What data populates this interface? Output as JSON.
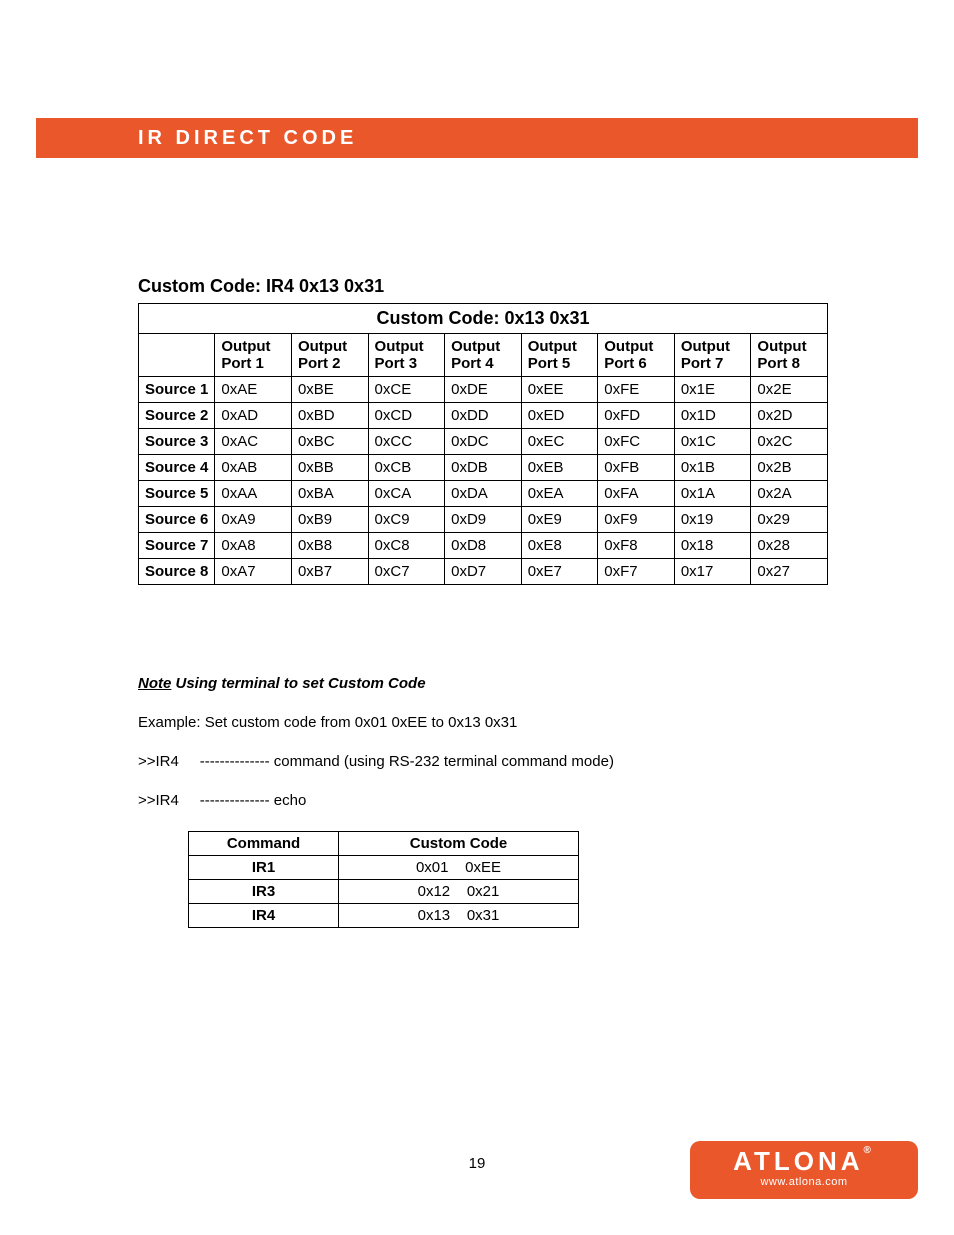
{
  "header": {
    "title": "IR DIRECT CODE",
    "bar_color": "#e9572b",
    "text_color": "#ffffff"
  },
  "section_title": "Custom Code: IR4 0x13 0x31",
  "main_table": {
    "caption": "Custom Code: 0x13   0x31",
    "columns": [
      "",
      "Output Port 1",
      "Output Port 2",
      "Output Port 3",
      "Output Port 4",
      "Output Port 5",
      "Output Port 6",
      "Output Port 7",
      "Output Port 8"
    ],
    "rows": [
      [
        "Source 1",
        "0xAE",
        "0xBE",
        "0xCE",
        "0xDE",
        "0xEE",
        "0xFE",
        "0x1E",
        "0x2E"
      ],
      [
        "Source 2",
        "0xAD",
        "0xBD",
        "0xCD",
        "0xDD",
        "0xED",
        "0xFD",
        "0x1D",
        "0x2D"
      ],
      [
        "Source 3",
        "0xAC",
        "0xBC",
        "0xCC",
        "0xDC",
        "0xEC",
        "0xFC",
        "0x1C",
        "0x2C"
      ],
      [
        "Source 4",
        "0xAB",
        "0xBB",
        "0xCB",
        "0xDB",
        "0xEB",
        "0xFB",
        "0x1B",
        "0x2B"
      ],
      [
        "Source 5",
        "0xAA",
        "0xBA",
        "0xCA",
        "0xDA",
        "0xEA",
        "0xFA",
        "0x1A",
        "0x2A"
      ],
      [
        "Source 6",
        "0xA9",
        "0xB9",
        "0xC9",
        "0xD9",
        "0xE9",
        "0xF9",
        "0x19",
        "0x29"
      ],
      [
        "Source 7",
        "0xA8",
        "0xB8",
        "0xC8",
        "0xD8",
        "0xE8",
        "0xF8",
        "0x18",
        "0x28"
      ],
      [
        "Source 8",
        "0xA7",
        "0xB7",
        "0xC7",
        "0xD7",
        "0xE7",
        "0xF7",
        "0x17",
        "0x27"
      ]
    ]
  },
  "note": {
    "label": "Note",
    "heading_rest": " Using terminal to set Custom Code",
    "example": "Example: Set custom code from 0x01 0xEE to 0x13 0x31",
    "line1": ">>IR4     -------------- command (using RS-232 terminal command mode)",
    "line2": ">>IR4     -------------- echo"
  },
  "cmd_table": {
    "columns": [
      "Command",
      "Custom Code"
    ],
    "rows": [
      [
        "IR1",
        "0x01    0xEE"
      ],
      [
        "IR3",
        "0x12    0x21"
      ],
      [
        "IR4",
        "0x13    0x31"
      ]
    ]
  },
  "page_number": "19",
  "logo": {
    "brand": "ATLONA",
    "reg": "®",
    "url": "www.atlona.com",
    "bg_color": "#e9572b"
  }
}
